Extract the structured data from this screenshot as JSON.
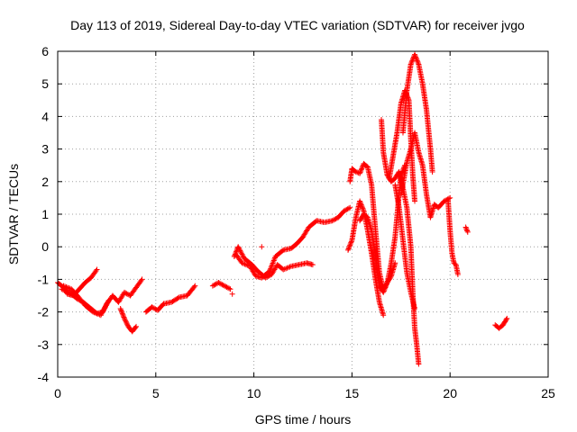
{
  "chart_data": {
    "type": "scatter",
    "title": "Day 113 of 2019, Sidereal Day-to-day VTEC variation (SDTVAR) for receiver jvgo",
    "xlabel": "GPS time / hours",
    "ylabel": "SDTVAR / TECUs",
    "xlim": [
      0,
      25
    ],
    "ylim": [
      -4,
      6
    ],
    "xticks": [
      "0",
      "5",
      "10",
      "15",
      "20",
      "25"
    ],
    "yticks": [
      "-4",
      "-3",
      "-2",
      "-1",
      "0",
      "1",
      "2",
      "3",
      "4",
      "5",
      "6"
    ],
    "grid": true,
    "marker": "+",
    "series_color": "#ff0000",
    "tracks": [
      [
        [
          0.0,
          -1.1
        ],
        [
          0.3,
          -1.25
        ],
        [
          0.5,
          -1.45
        ],
        [
          0.8,
          -1.5
        ],
        [
          1.1,
          -1.3
        ],
        [
          1.4,
          -1.1
        ],
        [
          1.7,
          -0.95
        ],
        [
          2.0,
          -0.7
        ]
      ],
      [
        [
          0.3,
          -1.2
        ],
        [
          0.7,
          -1.3
        ],
        [
          1.0,
          -1.5
        ],
        [
          1.4,
          -1.8
        ],
        [
          1.8,
          -2.0
        ],
        [
          2.2,
          -2.1
        ],
        [
          2.5,
          -1.75
        ],
        [
          2.8,
          -1.5
        ],
        [
          3.1,
          -1.7
        ],
        [
          3.4,
          -1.4
        ],
        [
          3.7,
          -1.5
        ],
        [
          4.0,
          -1.25
        ],
        [
          4.3,
          -1.0
        ]
      ],
      [
        [
          0.2,
          -1.3
        ],
        [
          0.6,
          -1.4
        ],
        [
          1.0,
          -1.6
        ],
        [
          1.3,
          -1.7
        ],
        [
          1.6,
          -1.85
        ],
        [
          2.0,
          -2.05
        ],
        [
          2.3,
          -2.0
        ],
        [
          2.6,
          -1.65
        ]
      ],
      [
        [
          3.2,
          -1.9
        ],
        [
          3.4,
          -2.2
        ],
        [
          3.6,
          -2.45
        ],
        [
          3.8,
          -2.6
        ],
        [
          4.0,
          -2.45
        ]
      ],
      [
        [
          4.5,
          -2.0
        ],
        [
          4.8,
          -1.85
        ],
        [
          5.1,
          -1.95
        ],
        [
          5.4,
          -1.75
        ],
        [
          5.8,
          -1.7
        ],
        [
          6.2,
          -1.55
        ],
        [
          6.6,
          -1.5
        ],
        [
          7.0,
          -1.2
        ]
      ],
      [
        [
          7.9,
          -1.2
        ],
        [
          8.2,
          -1.1
        ],
        [
          8.5,
          -1.2
        ],
        [
          8.8,
          -1.3
        ]
      ],
      [
        [
          9.0,
          -0.3
        ],
        [
          9.2,
          0.0
        ],
        [
          9.5,
          -0.35
        ],
        [
          9.9,
          -0.55
        ],
        [
          10.2,
          -0.75
        ],
        [
          10.6,
          -0.95
        ],
        [
          10.9,
          -0.85
        ],
        [
          11.2,
          -0.55
        ],
        [
          11.5,
          -0.7
        ],
        [
          11.9,
          -0.6
        ],
        [
          12.3,
          -0.55
        ],
        [
          12.7,
          -0.5
        ],
        [
          13.0,
          -0.55
        ]
      ],
      [
        [
          9.1,
          -0.25
        ],
        [
          9.4,
          -0.5
        ],
        [
          9.8,
          -0.6
        ],
        [
          10.1,
          -0.9
        ],
        [
          10.4,
          -0.95
        ],
        [
          10.8,
          -0.75
        ],
        [
          11.1,
          -0.3
        ],
        [
          11.5,
          -0.1
        ],
        [
          11.9,
          -0.05
        ],
        [
          12.2,
          0.1
        ],
        [
          12.5,
          0.3
        ],
        [
          12.8,
          0.6
        ],
        [
          13.2,
          0.8
        ],
        [
          13.6,
          0.75
        ],
        [
          14.0,
          0.8
        ],
        [
          14.3,
          0.9
        ],
        [
          14.6,
          1.1
        ],
        [
          14.9,
          1.2
        ]
      ],
      [
        [
          14.9,
          2.0
        ],
        [
          15.0,
          2.4
        ],
        [
          15.2,
          2.3
        ],
        [
          15.4,
          2.25
        ],
        [
          15.6,
          2.55
        ],
        [
          15.8,
          2.45
        ],
        [
          16.0,
          1.9
        ],
        [
          16.2,
          0.5
        ],
        [
          16.4,
          -0.8
        ],
        [
          16.6,
          -1.3
        ],
        [
          16.8,
          -1.1
        ],
        [
          17.0,
          -0.5
        ],
        [
          17.2,
          0.3
        ],
        [
          17.4,
          1.6
        ],
        [
          17.5,
          2.2
        ],
        [
          17.7,
          2.5
        ]
      ],
      [
        [
          14.8,
          -0.1
        ],
        [
          15.0,
          0.2
        ],
        [
          15.2,
          0.9
        ],
        [
          15.4,
          1.4
        ],
        [
          15.6,
          1.1
        ],
        [
          15.8,
          0.5
        ],
        [
          16.0,
          -0.2
        ],
        [
          16.2,
          -1.0
        ],
        [
          16.4,
          -1.7
        ],
        [
          16.6,
          -2.1
        ]
      ],
      [
        [
          15.4,
          0.8
        ],
        [
          15.6,
          1.0
        ],
        [
          15.8,
          0.9
        ],
        [
          16.0,
          0.5
        ],
        [
          16.2,
          -0.3
        ],
        [
          16.4,
          -1.2
        ],
        [
          16.6,
          -1.4
        ],
        [
          16.8,
          -1.1
        ],
        [
          17.0,
          -0.9
        ],
        [
          17.2,
          -0.5
        ]
      ],
      [
        [
          16.5,
          3.9
        ],
        [
          16.6,
          2.9
        ],
        [
          16.8,
          2.2
        ],
        [
          17.0,
          2.0
        ],
        [
          17.2,
          2.1
        ],
        [
          17.4,
          2.3
        ],
        [
          17.6,
          1.8
        ],
        [
          17.8,
          1.2
        ],
        [
          18.0,
          0.0
        ],
        [
          18.1,
          -1.4
        ],
        [
          18.2,
          -2.5
        ],
        [
          18.3,
          -3.0
        ],
        [
          18.4,
          -3.6
        ]
      ],
      [
        [
          16.9,
          2.1
        ],
        [
          17.1,
          2.8
        ],
        [
          17.3,
          3.5
        ],
        [
          17.5,
          4.4
        ],
        [
          17.7,
          4.8
        ],
        [
          17.9,
          4.5
        ],
        [
          18.0,
          3.3
        ],
        [
          18.1,
          2.2
        ],
        [
          18.2,
          1.4
        ]
      ],
      [
        [
          17.2,
          1.9
        ],
        [
          17.4,
          1.2
        ],
        [
          17.6,
          0.2
        ],
        [
          17.8,
          -0.8
        ],
        [
          18.0,
          -1.4
        ],
        [
          18.2,
          -1.9
        ]
      ],
      [
        [
          17.6,
          3.5
        ],
        [
          17.8,
          4.8
        ],
        [
          18.0,
          5.6
        ],
        [
          18.2,
          5.9
        ],
        [
          18.4,
          5.6
        ],
        [
          18.6,
          5.0
        ],
        [
          18.8,
          4.2
        ],
        [
          19.0,
          3.0
        ],
        [
          19.1,
          2.3
        ]
      ],
      [
        [
          17.5,
          1.6
        ],
        [
          17.8,
          2.6
        ],
        [
          18.0,
          3.0
        ],
        [
          18.2,
          3.5
        ],
        [
          18.4,
          2.9
        ],
        [
          18.6,
          2.5
        ],
        [
          18.8,
          1.6
        ],
        [
          19.0,
          0.9
        ],
        [
          19.2,
          1.3
        ],
        [
          19.4,
          1.2
        ],
        [
          19.7,
          1.4
        ],
        [
          20.0,
          1.5
        ]
      ],
      [
        [
          19.9,
          1.4
        ],
        [
          20.0,
          0.5
        ],
        [
          20.1,
          -0.2
        ],
        [
          20.2,
          -0.5
        ],
        [
          20.3,
          -0.55
        ],
        [
          20.4,
          -0.85
        ]
      ],
      [
        [
          20.8,
          0.6
        ],
        [
          20.9,
          0.45
        ]
      ],
      [
        [
          22.3,
          -2.4
        ],
        [
          22.5,
          -2.5
        ],
        [
          22.7,
          -2.4
        ],
        [
          22.9,
          -2.2
        ]
      ]
    ],
    "isolated_points": [
      [
        10.4,
        0.0
      ],
      [
        8.9,
        -1.45
      ]
    ]
  }
}
